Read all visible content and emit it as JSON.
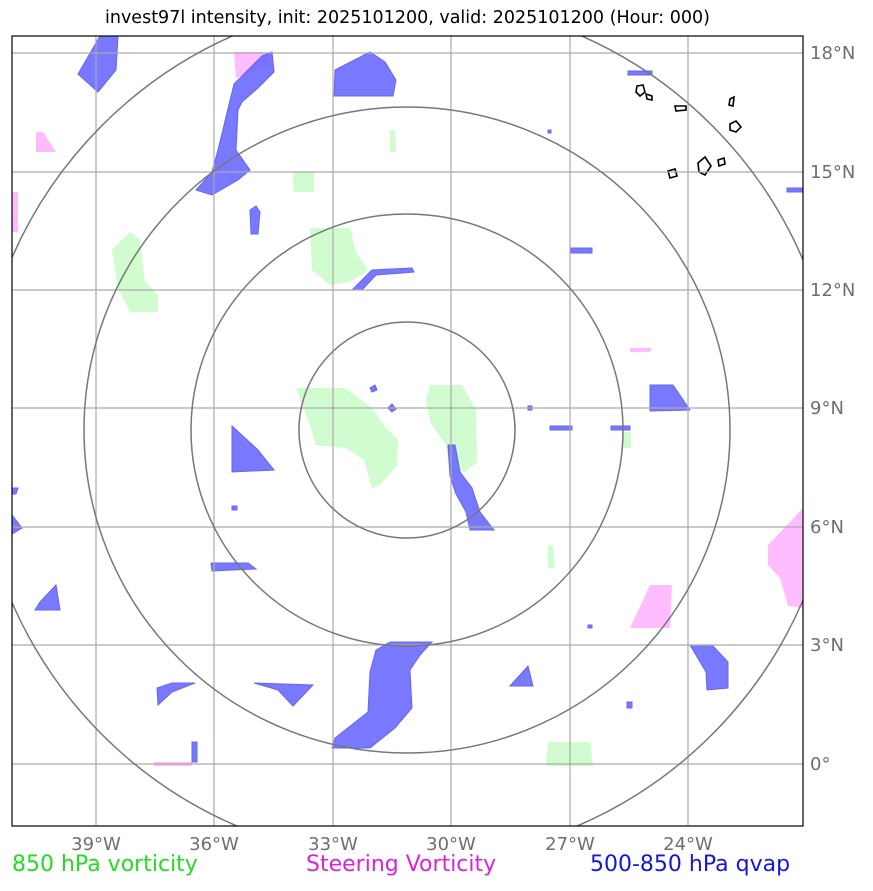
{
  "title": "invest97l intensity, init: 2025101200, valid: 2025101200 (Hour: 000)",
  "lon_labels": [
    "39°W",
    "36°W",
    "33°W",
    "30°W",
    "27°W",
    "24°W"
  ],
  "lat_labels": [
    "18°N",
    "15°N",
    "12°N",
    "9°N",
    "6°N",
    "3°N",
    "0°"
  ],
  "legend": {
    "green": "850 hPa vorticity",
    "magenta": "Steering Vorticity",
    "blue": "500-850 hPa qvap"
  },
  "colors": {
    "vorticity_850": "#c8fcc8",
    "steering_vorticity": "#ffb0ff",
    "qvap": "#6b6bff",
    "range_rings": "#777777",
    "grid": "#aaaaaa"
  },
  "map": {
    "lon_range": [
      -41.1,
      -21.1
    ],
    "lat_range": [
      -1.5,
      18.5
    ],
    "storm_center": {
      "lon": "-31.1",
      "lat": "8.5"
    }
  }
}
